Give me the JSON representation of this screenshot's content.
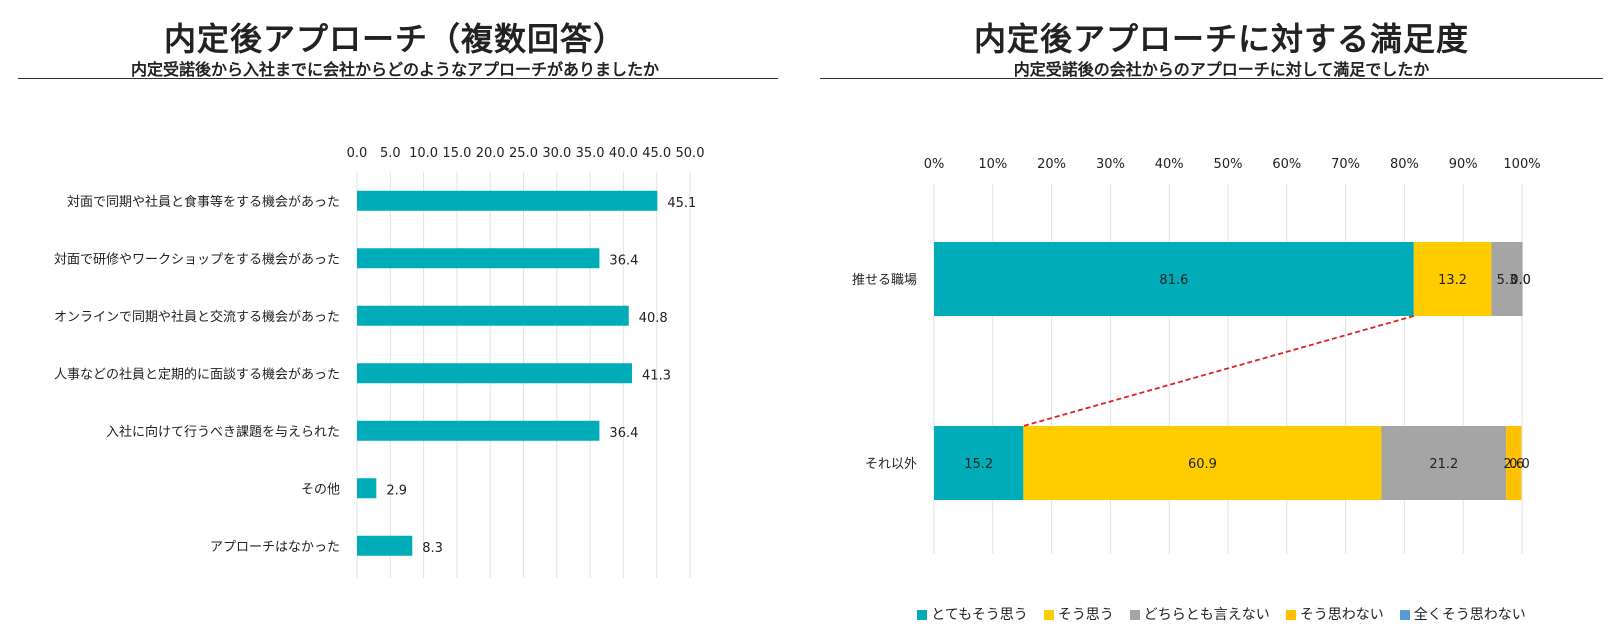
{
  "left_chart": {
    "title": "内定後アプローチ（複数回答）",
    "subtitle": "内定受諾後から入社までに会社からどのようなアプローチがありましたか"
  },
  "right_chart": {
    "title": "内定後アプローチに対する満足度",
    "subtitle": "内定受諾後の会社からのアプローチに対して満足でしたか"
  },
  "chart_data": [
    {
      "type": "bar",
      "orientation": "horizontal",
      "title": "内定後アプローチ（複数回答）",
      "subtitle": "内定受諾後から入社までに会社からどのようなアプローチがありましたか",
      "categories": [
        "対面で同期や社員と食事等をする機会があった",
        "対面で研修やワークショップをする機会があった",
        "オンラインで同期や社員と交流する機会があった",
        "人事などの社員と定期的に面談する機会があった",
        "入社に向けて行うべき課題を与えられた",
        "その他",
        "アプローチはなかった"
      ],
      "values": [
        45.1,
        36.4,
        40.8,
        41.3,
        36.4,
        2.9,
        8.3
      ],
      "value_labels": [
        "45.1",
        "36.4",
        "40.8",
        "41.3",
        "36.4",
        "2.9",
        "8.3"
      ],
      "xlim": [
        0,
        50
      ],
      "xticks": [
        "0.0",
        "5.0",
        "10.0",
        "15.0",
        "20.0",
        "25.0",
        "30.0",
        "35.0",
        "40.0",
        "45.0",
        "50.0"
      ],
      "axis_position": "top",
      "grid": true,
      "color": "#00ACB8"
    },
    {
      "type": "bar",
      "orientation": "horizontal",
      "stacked": true,
      "percent": true,
      "title": "内定後アプローチに対する満足度",
      "subtitle": "内定受諾後の会社からのアプローチに対して満足でしたか",
      "categories": [
        "推せる職場",
        "それ以外"
      ],
      "series": [
        {
          "name": "とてもそう思う",
          "color": "#00ACB8",
          "values": [
            81.6,
            15.2
          ],
          "labels": [
            "81.6",
            "15.2"
          ]
        },
        {
          "name": "そう思う",
          "color": "#FFCC00",
          "values": [
            13.2,
            60.9
          ],
          "labels": [
            "13.2",
            "60.9"
          ]
        },
        {
          "name": "どちらとも言えない",
          "color": "#A5A5A5",
          "values": [
            5.3,
            21.2
          ],
          "labels": [
            "5.3",
            "21.2"
          ]
        },
        {
          "name": "そう思わない",
          "color": "#FFC000",
          "values": [
            0.0,
            2.6
          ],
          "labels": [
            "0.0",
            "2.6"
          ]
        },
        {
          "name": "全くそう思わない",
          "color": "#5B9BD5",
          "values": [
            0.0,
            0.0
          ],
          "labels": [
            "0.0",
            "0.0"
          ]
        }
      ],
      "xticks": [
        "0%",
        "10%",
        "20%",
        "30%",
        "40%",
        "50%",
        "60%",
        "70%",
        "80%",
        "90%",
        "100%"
      ],
      "axis_position": "top",
      "grid": true,
      "legend": "bottom",
      "annotation": "dashed red connector from the end of the とてもそう思う segment of 推せる職場 to the end of the とてもそう思う segment of それ以外",
      "annotation_color": "#E02020"
    }
  ]
}
